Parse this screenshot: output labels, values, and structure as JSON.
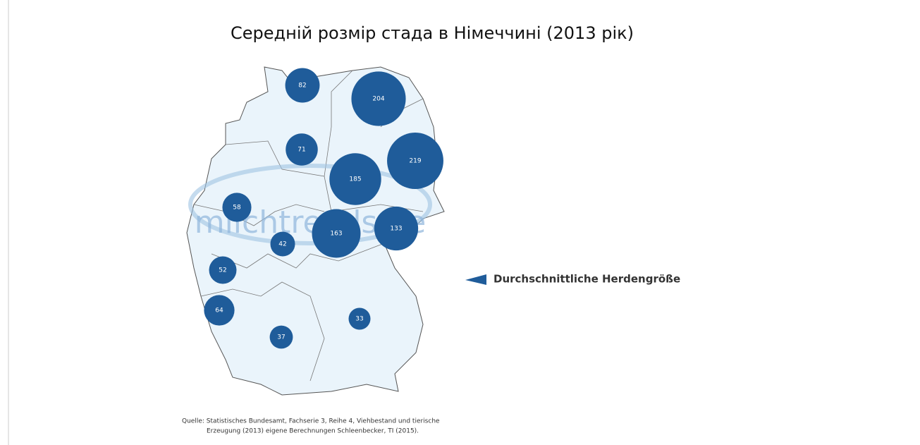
{
  "title": "Середній розмір стада в Німеччині (2013 рік)",
  "map": {
    "watermark": "milchtrends.de",
    "bubble_color": "#1f5c9a",
    "bubbles": [
      {
        "value": 82
      },
      {
        "value": 204
      },
      {
        "value": 71
      },
      {
        "value": 219
      },
      {
        "value": 185
      },
      {
        "value": 58
      },
      {
        "value": 163
      },
      {
        "value": 133
      },
      {
        "value": 42
      },
      {
        "value": 52
      },
      {
        "value": 64
      },
      {
        "value": 37
      },
      {
        "value": 33
      }
    ]
  },
  "legend": {
    "label": "Durchschnittliche Herdengröße"
  },
  "source": {
    "line1": "Quelle: Statistisches Bundesamt, Fachserie 3, Reihe 4, Viehbestand und tierische",
    "line2": "Erzeugung (2013) eigene Berechnungen Schleenbecker, TI (2015)."
  }
}
